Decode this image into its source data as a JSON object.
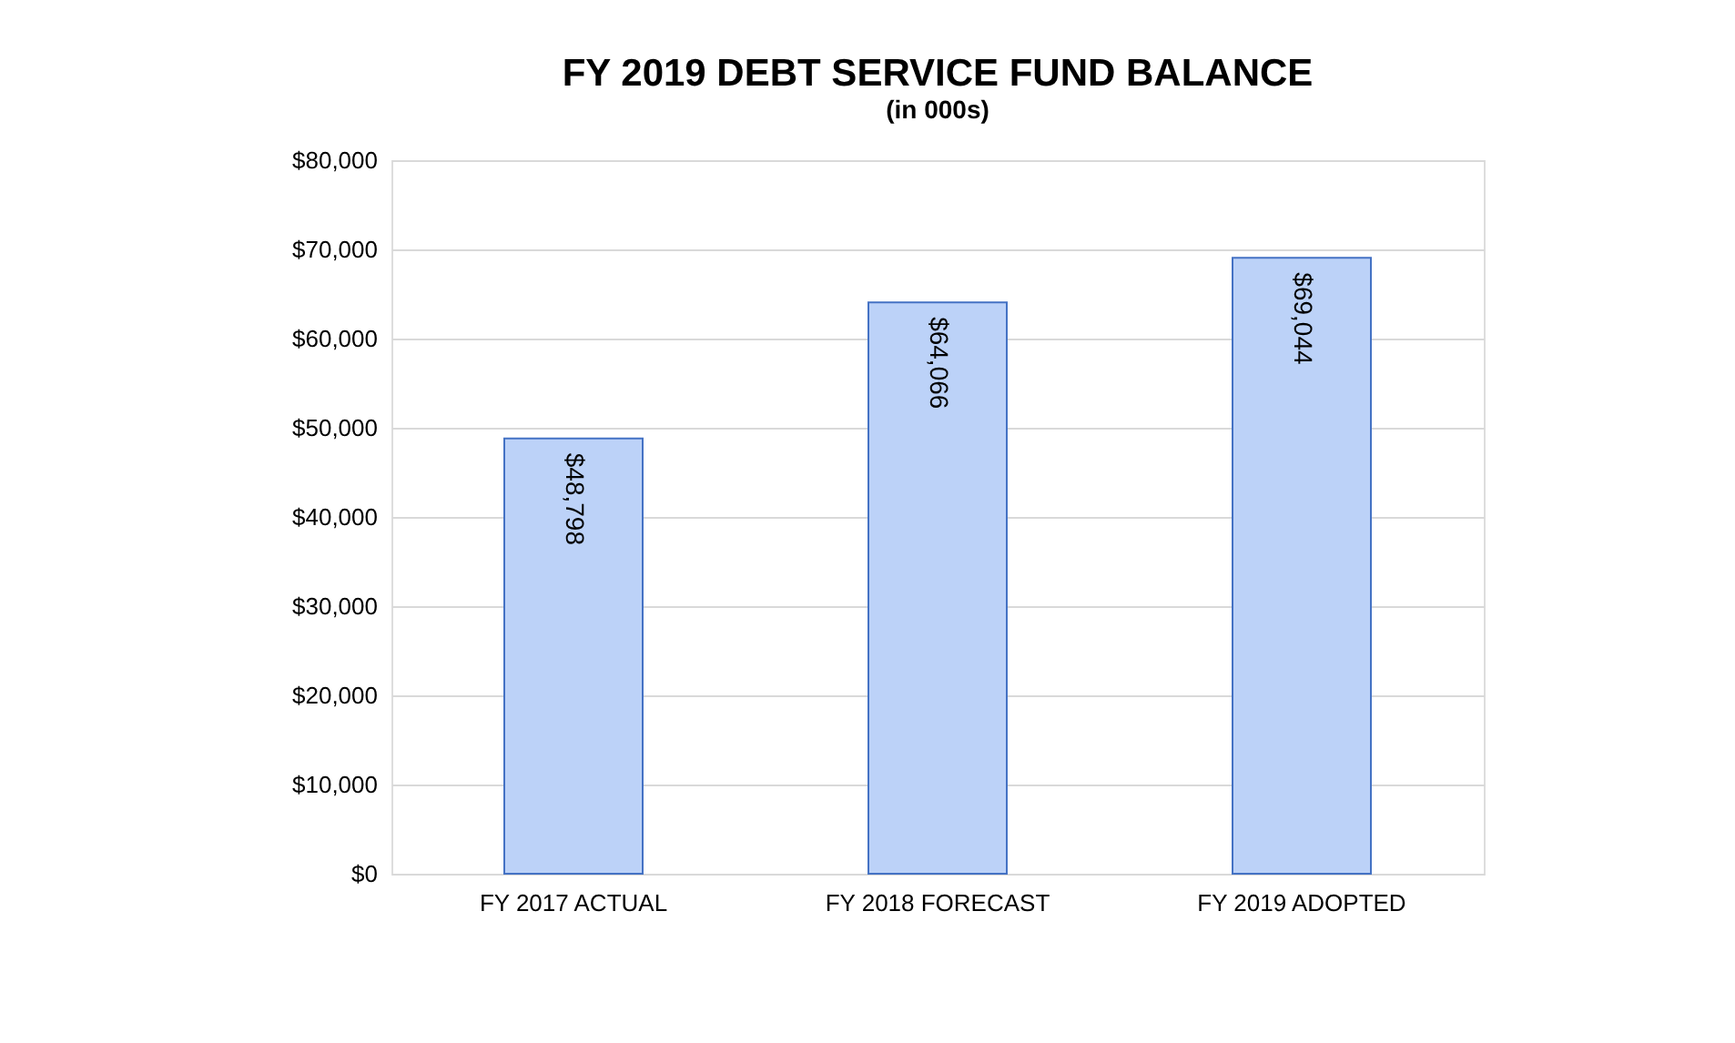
{
  "chart_data": {
    "type": "bar",
    "title": "FY 2019 DEBT SERVICE FUND BALANCE",
    "subtitle": "(in 000s)",
    "categories": [
      "FY 2017 ACTUAL",
      "FY 2018 FORECAST",
      "FY 2019 ADOPTED"
    ],
    "values": [
      48798,
      64066,
      69044
    ],
    "color": "#bcd2f8",
    "ylim": [
      0,
      80000
    ],
    "yticks": [
      {
        "value": 0,
        "label": "$0"
      },
      {
        "value": 10000,
        "label": "$10,000"
      },
      {
        "value": 20000,
        "label": "$20,000"
      },
      {
        "value": 30000,
        "label": "$30,000"
      },
      {
        "value": 40000,
        "label": "$40,000"
      },
      {
        "value": 50000,
        "label": "$50,000"
      },
      {
        "value": 60000,
        "label": "$60,000"
      },
      {
        "value": 70000,
        "label": "$70,000"
      },
      {
        "value": 80000,
        "label": "$80,000"
      }
    ],
    "grid": "y",
    "data_labels": true,
    "value_labels": [
      "$48,798",
      "$64,066",
      "$69,044"
    ]
  }
}
